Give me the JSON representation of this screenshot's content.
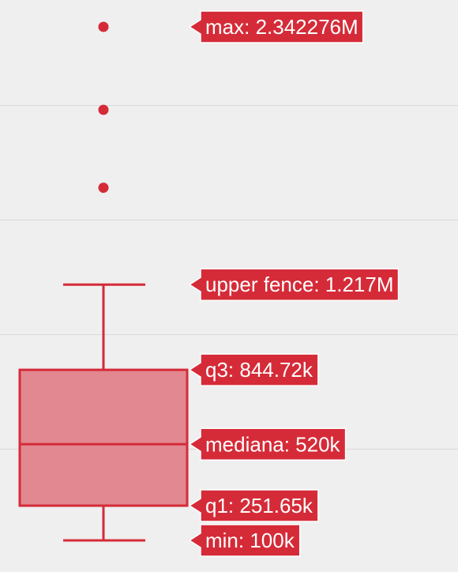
{
  "chart_data": {
    "type": "box",
    "gridlines": [
      500000,
      1000000,
      1500000,
      2000000
    ],
    "box": {
      "min": 100000,
      "q1": 251650,
      "median": 520000,
      "q3": 844720,
      "upper_fence": 1217000
    },
    "outliers": [
      1640000,
      1980000,
      2342276
    ],
    "labels": {
      "max": "max: 2.342276M",
      "upper_fence": "upper fence: 1.217M",
      "q3": "q3: 844.72k",
      "median": "mediana: 520k",
      "q1": "q1: 251.65k",
      "min": "min: 100k"
    },
    "colors": {
      "background": "#efefef",
      "grid": "#d9d9d9",
      "accent": "#d52b38",
      "box_fill": "#e28890",
      "label_text": "#ffffff"
    }
  }
}
